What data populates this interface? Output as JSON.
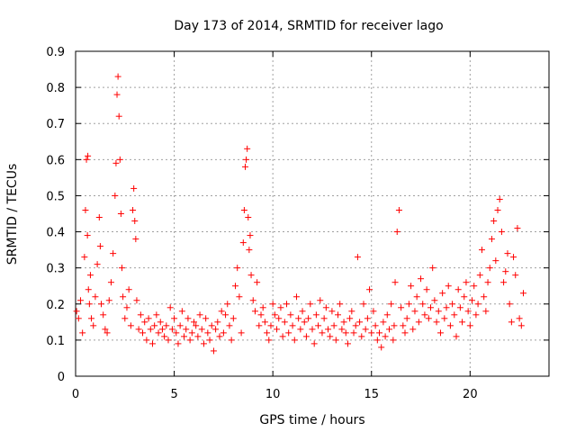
{
  "chart_data": {
    "type": "scatter",
    "title": "Day 173 of 2014, SRMTID for receiver lago",
    "xlabel": "GPS time / hours",
    "ylabel": "SRMTID / TECUs",
    "xlim": [
      0,
      24
    ],
    "ylim": [
      0,
      0.9
    ],
    "x_ticks": [
      0,
      5,
      10,
      15,
      20
    ],
    "x_tick_labels": [
      "0",
      "5",
      "10",
      "15",
      "20"
    ],
    "y_ticks": [
      0,
      0.1,
      0.2,
      0.3,
      0.4,
      0.5,
      0.6,
      0.7,
      0.8,
      0.9
    ],
    "y_tick_labels": [
      "0",
      "0.1",
      "0.2",
      "0.3",
      "0.4",
      "0.5",
      "0.6",
      "0.7",
      "0.8",
      "0.9"
    ],
    "grid": true,
    "marker": "+",
    "series": [
      {
        "name": "SRMTID",
        "color": "#ff0000",
        "x": [
          0.05,
          0.15,
          0.25,
          0.35,
          0.45,
          0.5,
          0.55,
          0.6,
          0.62,
          0.65,
          0.7,
          0.75,
          0.8,
          0.9,
          1.0,
          1.1,
          1.2,
          1.25,
          1.3,
          1.4,
          1.5,
          1.6,
          1.7,
          1.8,
          1.9,
          2.0,
          2.05,
          2.1,
          2.15,
          2.2,
          2.25,
          2.3,
          2.35,
          2.4,
          2.5,
          2.6,
          2.7,
          2.8,
          2.9,
          2.95,
          3.0,
          3.05,
          3.1,
          3.2,
          3.3,
          3.4,
          3.5,
          3.6,
          3.7,
          3.8,
          3.9,
          4.0,
          4.1,
          4.2,
          4.3,
          4.4,
          4.5,
          4.6,
          4.7,
          4.8,
          4.9,
          5.0,
          5.1,
          5.2,
          5.3,
          5.4,
          5.5,
          5.6,
          5.7,
          5.8,
          5.9,
          6.0,
          6.1,
          6.2,
          6.3,
          6.4,
          6.5,
          6.6,
          6.7,
          6.8,
          6.9,
          7.0,
          7.1,
          7.2,
          7.3,
          7.4,
          7.5,
          7.6,
          7.7,
          7.8,
          7.9,
          8.0,
          8.1,
          8.2,
          8.3,
          8.4,
          8.5,
          8.55,
          8.6,
          8.65,
          8.7,
          8.75,
          8.8,
          8.85,
          8.9,
          9.0,
          9.1,
          9.2,
          9.3,
          9.4,
          9.5,
          9.6,
          9.7,
          9.8,
          9.9,
          10.0,
          10.1,
          10.2,
          10.3,
          10.4,
          10.5,
          10.6,
          10.7,
          10.8,
          10.9,
          11.0,
          11.1,
          11.2,
          11.3,
          11.4,
          11.5,
          11.6,
          11.7,
          11.8,
          11.9,
          12.0,
          12.1,
          12.2,
          12.3,
          12.4,
          12.5,
          12.6,
          12.7,
          12.8,
          12.9,
          13.0,
          13.1,
          13.2,
          13.3,
          13.4,
          13.5,
          13.6,
          13.7,
          13.8,
          13.9,
          14.0,
          14.1,
          14.2,
          14.3,
          14.4,
          14.5,
          14.6,
          14.7,
          14.8,
          14.9,
          15.0,
          15.1,
          15.2,
          15.3,
          15.4,
          15.5,
          15.6,
          15.7,
          15.8,
          15.9,
          16.0,
          16.1,
          16.15,
          16.2,
          16.3,
          16.4,
          16.5,
          16.6,
          16.7,
          16.8,
          16.9,
          17.0,
          17.1,
          17.2,
          17.3,
          17.4,
          17.5,
          17.6,
          17.7,
          17.8,
          17.9,
          18.0,
          18.1,
          18.2,
          18.3,
          18.4,
          18.5,
          18.6,
          18.7,
          18.8,
          18.9,
          19.0,
          19.1,
          19.2,
          19.3,
          19.4,
          19.5,
          19.6,
          19.7,
          19.8,
          19.9,
          20.0,
          20.1,
          20.2,
          20.3,
          20.4,
          20.5,
          20.6,
          20.7,
          20.8,
          20.9,
          21.0,
          21.1,
          21.2,
          21.3,
          21.4,
          21.5,
          21.6,
          21.7,
          21.8,
          21.9,
          22.0,
          22.1,
          22.2,
          22.3,
          22.4,
          22.5,
          22.6,
          22.7
        ],
        "y": [
          0.18,
          0.16,
          0.21,
          0.12,
          0.33,
          0.46,
          0.6,
          0.39,
          0.61,
          0.24,
          0.2,
          0.28,
          0.16,
          0.14,
          0.22,
          0.31,
          0.44,
          0.36,
          0.2,
          0.17,
          0.13,
          0.12,
          0.21,
          0.26,
          0.34,
          0.5,
          0.59,
          0.78,
          0.83,
          0.72,
          0.6,
          0.45,
          0.3,
          0.22,
          0.16,
          0.19,
          0.24,
          0.14,
          0.46,
          0.52,
          0.43,
          0.38,
          0.21,
          0.13,
          0.17,
          0.12,
          0.15,
          0.1,
          0.16,
          0.13,
          0.09,
          0.14,
          0.17,
          0.12,
          0.15,
          0.13,
          0.11,
          0.14,
          0.1,
          0.19,
          0.13,
          0.16,
          0.12,
          0.09,
          0.14,
          0.18,
          0.11,
          0.13,
          0.16,
          0.1,
          0.12,
          0.15,
          0.14,
          0.11,
          0.17,
          0.13,
          0.09,
          0.16,
          0.12,
          0.1,
          0.14,
          0.07,
          0.13,
          0.15,
          0.11,
          0.18,
          0.12,
          0.17,
          0.2,
          0.14,
          0.1,
          0.16,
          0.25,
          0.3,
          0.22,
          0.12,
          0.37,
          0.46,
          0.58,
          0.6,
          0.63,
          0.44,
          0.35,
          0.39,
          0.28,
          0.21,
          0.18,
          0.26,
          0.14,
          0.17,
          0.19,
          0.15,
          0.12,
          0.1,
          0.14,
          0.2,
          0.17,
          0.13,
          0.16,
          0.19,
          0.11,
          0.15,
          0.2,
          0.12,
          0.17,
          0.14,
          0.1,
          0.22,
          0.16,
          0.13,
          0.18,
          0.15,
          0.11,
          0.16,
          0.2,
          0.13,
          0.09,
          0.17,
          0.14,
          0.21,
          0.12,
          0.16,
          0.19,
          0.13,
          0.11,
          0.18,
          0.14,
          0.1,
          0.17,
          0.2,
          0.13,
          0.15,
          0.12,
          0.09,
          0.16,
          0.18,
          0.12,
          0.14,
          0.33,
          0.15,
          0.11,
          0.2,
          0.13,
          0.16,
          0.24,
          0.12,
          0.18,
          0.14,
          0.1,
          0.12,
          0.08,
          0.15,
          0.11,
          0.17,
          0.13,
          0.2,
          0.1,
          0.14,
          0.26,
          0.4,
          0.46,
          0.19,
          0.14,
          0.12,
          0.16,
          0.2,
          0.25,
          0.13,
          0.18,
          0.22,
          0.15,
          0.27,
          0.2,
          0.17,
          0.24,
          0.16,
          0.19,
          0.3,
          0.21,
          0.15,
          0.18,
          0.12,
          0.23,
          0.16,
          0.19,
          0.25,
          0.14,
          0.2,
          0.17,
          0.11,
          0.24,
          0.19,
          0.15,
          0.22,
          0.26,
          0.18,
          0.14,
          0.21,
          0.25,
          0.17,
          0.2,
          0.28,
          0.35,
          0.22,
          0.18,
          0.26,
          0.3,
          0.38,
          0.43,
          0.32,
          0.46,
          0.49,
          0.4,
          0.26,
          0.29,
          0.34,
          0.2,
          0.15,
          0.33,
          0.28,
          0.41,
          0.16,
          0.14,
          0.23
        ]
      }
    ]
  }
}
